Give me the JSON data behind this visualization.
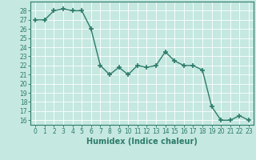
{
  "x": [
    0,
    1,
    2,
    3,
    4,
    5,
    6,
    7,
    8,
    9,
    10,
    11,
    12,
    13,
    14,
    15,
    16,
    17,
    18,
    19,
    20,
    21,
    22,
    23
  ],
  "y": [
    27,
    27,
    28,
    28.2,
    28,
    28,
    26,
    22,
    21,
    21.8,
    21,
    22,
    21.8,
    22,
    23.5,
    22.5,
    22,
    22,
    21.5,
    17.5,
    16,
    16,
    16.5,
    16
  ],
  "xlabel": "Humidex (Indice chaleur)",
  "xlim": [
    -0.5,
    23.5
  ],
  "ylim": [
    15.5,
    29
  ],
  "yticks": [
    16,
    17,
    18,
    19,
    20,
    21,
    22,
    23,
    24,
    25,
    26,
    27,
    28
  ],
  "xticks": [
    0,
    1,
    2,
    3,
    4,
    5,
    6,
    7,
    8,
    9,
    10,
    11,
    12,
    13,
    14,
    15,
    16,
    17,
    18,
    19,
    20,
    21,
    22,
    23
  ],
  "line_color": "#2d7b6b",
  "marker": "+",
  "markersize": 4,
  "markeredgewidth": 1.2,
  "bg_color": "#c5e8e0",
  "grid_color": "#ffffff",
  "axis_color": "#2d7b6b",
  "tick_label_color": "#2d7b6b",
  "xlabel_color": "#2d7b6b",
  "xlabel_fontsize": 7,
  "tick_fontsize": 5.5,
  "linewidth": 1.0
}
